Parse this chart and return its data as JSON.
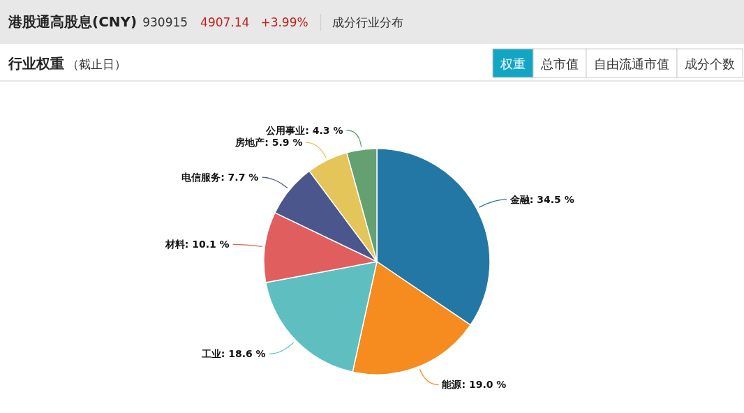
{
  "chart_data": {
    "type": "pie",
    "title": "行业权重",
    "subtitle": "（截止日）",
    "categories": [
      "金融",
      "能源",
      "工业",
      "材料",
      "电信服务",
      "房地产",
      "公用事业"
    ],
    "values": [
      34.5,
      19.0,
      18.6,
      10.1,
      7.7,
      5.9,
      4.3
    ],
    "value_labels": [
      "34.5 %",
      "19.0 %",
      "18.6 %",
      "10.1 %",
      "7.7 %",
      "5.9 %",
      "4.3 %"
    ],
    "colors": [
      "#2277a4",
      "#f68b1f",
      "#5fbfc0",
      "#e05f5e",
      "#4b568c",
      "#e3c55a",
      "#64a070"
    ],
    "annotations": [
      "港股通高股息(CNY)",
      "930915",
      "4907.14",
      "+3.99%",
      "成分行业分布",
      "权重",
      "总市值",
      "自由流通市值",
      "成分个数"
    ]
  }
}
